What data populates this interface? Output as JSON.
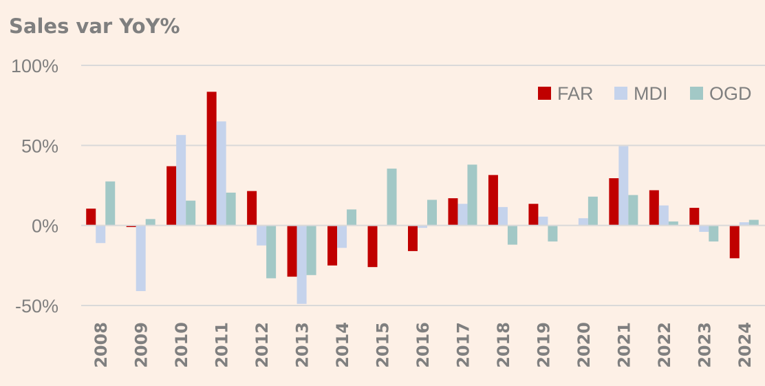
{
  "chart_data": {
    "type": "bar",
    "title": "Sales var YoY%",
    "xlabel": "",
    "ylabel": "",
    "ylim": [
      -50,
      100
    ],
    "yticks": [
      -50,
      0,
      50,
      100
    ],
    "ytick_labels": [
      "-50%",
      "0%",
      "50%",
      "100%"
    ],
    "categories": [
      "2008",
      "2009",
      "2010",
      "2011",
      "2012",
      "2013",
      "2014",
      "2015",
      "2016",
      "2017",
      "2018",
      "2019",
      "2020",
      "2021",
      "2022",
      "2023",
      "2024"
    ],
    "series": [
      {
        "name": "FAR",
        "color": "#C00000",
        "values": [
          10.5,
          -1,
          37,
          83.5,
          21.5,
          -32,
          -25,
          -26,
          -16,
          17,
          31.5,
          13.5,
          0,
          29.5,
          22,
          11,
          -20.5
        ]
      },
      {
        "name": "MDI",
        "color": "#C5D3EC",
        "values": [
          -11,
          -41,
          56.5,
          65,
          -12.5,
          -49,
          -14,
          0,
          -1.5,
          13.5,
          11.5,
          5.5,
          4.5,
          49.5,
          12.5,
          -4,
          2
        ]
      },
      {
        "name": "OGD",
        "color": "#A2C8C6",
        "values": [
          27.5,
          4,
          15.5,
          20.5,
          -33,
          -31,
          10,
          35.5,
          16,
          38,
          -12,
          -10,
          18,
          19,
          2.5,
          -10,
          3.5
        ]
      }
    ],
    "grid": true,
    "legend_position": "top-right"
  }
}
